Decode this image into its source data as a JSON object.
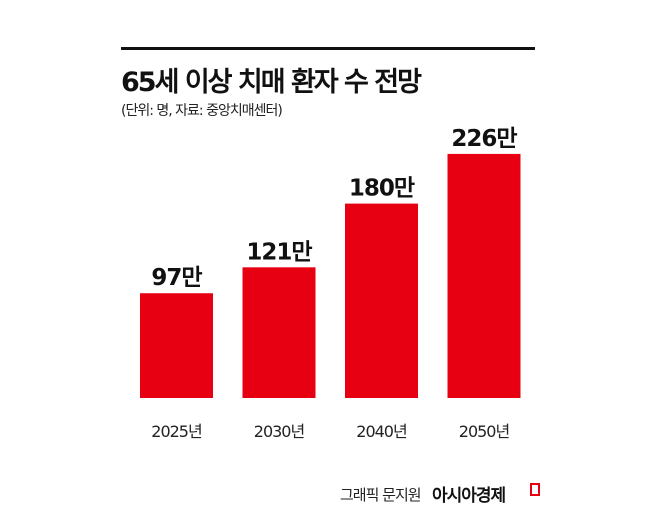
{
  "chart_data": {
    "type": "bar",
    "title": "65세 이상 치매 환자 수 전망",
    "subtitle": "(단위: 명, 자료: 중앙치매센터)",
    "categories": [
      "2025년",
      "2030년",
      "2040년",
      "2050년"
    ],
    "values": [
      97,
      121,
      180,
      226
    ],
    "data_labels": [
      "97만",
      "121만",
      "180만",
      "226만"
    ],
    "unit": "만 명",
    "bar_color": "#e60012",
    "grid": false,
    "ylim": [
      0,
      240
    ]
  },
  "credit": "그래픽 문지원",
  "brand": "아시아경제"
}
